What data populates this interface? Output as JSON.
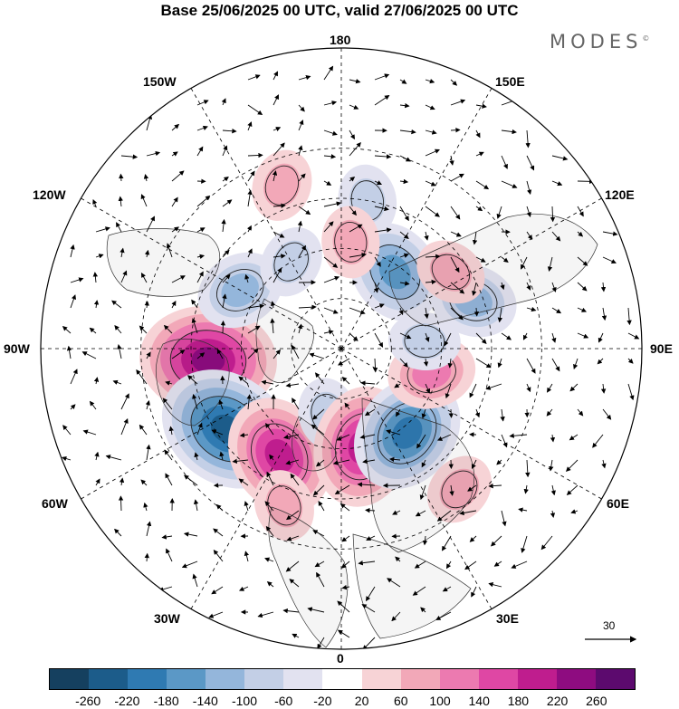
{
  "title": "Base 25/06/2025 00 UTC, valid 27/06/2025 00 UTC",
  "brand": "MODES",
  "brand_mark": "©",
  "longitude_labels": {
    "n180": "180",
    "e150": "150E",
    "e120": "120E",
    "e90": "90E",
    "e60": "60E",
    "e30": "30E",
    "n0": "0",
    "w30": "30W",
    "w60": "60W",
    "w90": "90W",
    "w120": "120W",
    "w150": "150W"
  },
  "wind_reference": {
    "label": "30"
  },
  "colorbar": {
    "ticks": [
      "-260",
      "-220",
      "-180",
      "-140",
      "-100",
      "-60",
      "-20",
      "20",
      "60",
      "100",
      "140",
      "180",
      "220",
      "260"
    ],
    "colors": [
      "#15405f",
      "#1c5c8a",
      "#2f7ab2",
      "#5b98c6",
      "#94b6db",
      "#c3cfe6",
      "#e2e2f0",
      "#ffffff",
      "#f7d3d6",
      "#f2a8b8",
      "#ec7ab0",
      "#df47a4",
      "#bf1d8e",
      "#8e0c80",
      "#5c0a6e"
    ]
  },
  "anomalies": [
    {
      "lon": -85,
      "lat": 50,
      "value": 230
    },
    {
      "lon": -55,
      "lat": 48,
      "value": -230
    },
    {
      "lon": -30,
      "lat": 53,
      "value": 190
    },
    {
      "lon": -12,
      "lat": 70,
      "value": -80
    },
    {
      "lon": 12,
      "lat": 60,
      "value": 180
    },
    {
      "lon": 38,
      "lat": 58,
      "value": -200
    },
    {
      "lon": 75,
      "lat": 62,
      "value": 110
    },
    {
      "lon": 95,
      "lat": 65,
      "value": -70
    },
    {
      "lon": 110,
      "lat": 48,
      "value": -110
    },
    {
      "lon": 145,
      "lat": 62,
      "value": -170
    },
    {
      "lon": 125,
      "lat": 50,
      "value": 70
    },
    {
      "lon": 170,
      "lat": 45,
      "value": -60
    },
    {
      "lon": -160,
      "lat": 38,
      "value": 90
    },
    {
      "lon": -120,
      "lat": 55,
      "value": -110
    },
    {
      "lon": -150,
      "lat": 60,
      "value": -60
    },
    {
      "lon": 175,
      "lat": 58,
      "value": 60
    },
    {
      "lon": 40,
      "lat": 35,
      "value": 60
    },
    {
      "lon": -20,
      "lat": 40,
      "value": 60
    }
  ]
}
